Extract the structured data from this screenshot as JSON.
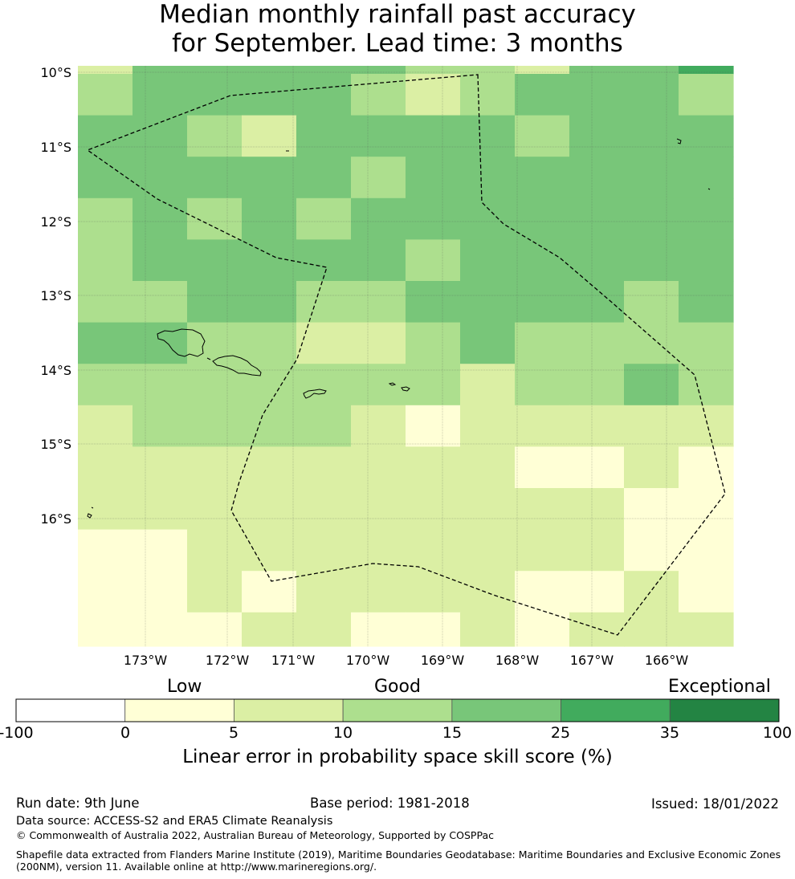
{
  "title": {
    "line1": "Median monthly rainfall past accuracy",
    "line2": "for September. Lead time: 3 months"
  },
  "map": {
    "lat_labels": [
      "10°S",
      "11°S",
      "12°S",
      "13°S",
      "14°S",
      "15°S",
      "16°S"
    ],
    "lon_labels": [
      "173°W",
      "172°W",
      "171°W",
      "170°W",
      "169°W",
      "168°W",
      "167°W",
      "166°W"
    ],
    "cell_grid_skill_class": [
      [
        1,
        3,
        3,
        3,
        3,
        3,
        2,
        2,
        1,
        3,
        3,
        4
      ],
      [
        2,
        3,
        3,
        3,
        3,
        2,
        1,
        2,
        3,
        3,
        3,
        2
      ],
      [
        3,
        3,
        2,
        1,
        3,
        3,
        3,
        3,
        2,
        3,
        3,
        3
      ],
      [
        3,
        3,
        3,
        3,
        3,
        2,
        3,
        3,
        3,
        3,
        3,
        3
      ],
      [
        2,
        3,
        2,
        3,
        2,
        3,
        3,
        3,
        3,
        3,
        3,
        3
      ],
      [
        2,
        3,
        3,
        3,
        3,
        3,
        2,
        3,
        3,
        3,
        3,
        3
      ],
      [
        2,
        2,
        3,
        3,
        2,
        2,
        3,
        3,
        3,
        3,
        2,
        3
      ],
      [
        3,
        3,
        2,
        2,
        1,
        1,
        2,
        3,
        2,
        2,
        2,
        2
      ],
      [
        2,
        2,
        2,
        2,
        2,
        2,
        2,
        1,
        2,
        2,
        3,
        2
      ],
      [
        1,
        2,
        2,
        2,
        2,
        1,
        0,
        1,
        1,
        1,
        1,
        1
      ],
      [
        1,
        1,
        1,
        1,
        1,
        1,
        1,
        1,
        0,
        0,
        1,
        0
      ],
      [
        1,
        1,
        1,
        1,
        1,
        1,
        1,
        1,
        1,
        1,
        0,
        0
      ],
      [
        0,
        0,
        1,
        1,
        1,
        1,
        1,
        1,
        1,
        1,
        0,
        0
      ],
      [
        0,
        0,
        1,
        0,
        1,
        1,
        1,
        1,
        0,
        0,
        1,
        0
      ],
      [
        0,
        0,
        0,
        1,
        1,
        0,
        0,
        1,
        0,
        1,
        1,
        1
      ]
    ],
    "class_colors": [
      "#ffffd6",
      "#dbefa4",
      "#addf8e",
      "#78c679",
      "#41ab5d",
      "#238443"
    ]
  },
  "colorbar": {
    "categories": [
      "Low",
      "Good",
      "Exceptional"
    ],
    "ticks": [
      "-100",
      "0",
      "5",
      "10",
      "15",
      "25",
      "35",
      "100"
    ],
    "colors": [
      "#ffffff",
      "#ffffd6",
      "#dbefa4",
      "#addf8e",
      "#78c679",
      "#41ab5d",
      "#238443"
    ],
    "title": "Linear error in probability space skill score (%)"
  },
  "footer": {
    "run_date": "Run date: 9th June",
    "base_period": "Base period: 1981-2018",
    "issued": "Issued: 18/01/2022",
    "data_source": "Data source: ACCESS-S2 and ERA5 Climate Reanalysis",
    "copyright": "© Commonwealth of Australia 2022, Australian Bureau of Meteorology, Supported by COSPPac",
    "shapefile_line1": "Shapefile data extracted from Flanders Marine Institute (2019), Maritime Boundaries Geodatabase: Maritime Boundaries and Exclusive Economic Zones",
    "shapefile_line2": "(200NM), version 11. Available online at http://www.marineregions.org/."
  }
}
